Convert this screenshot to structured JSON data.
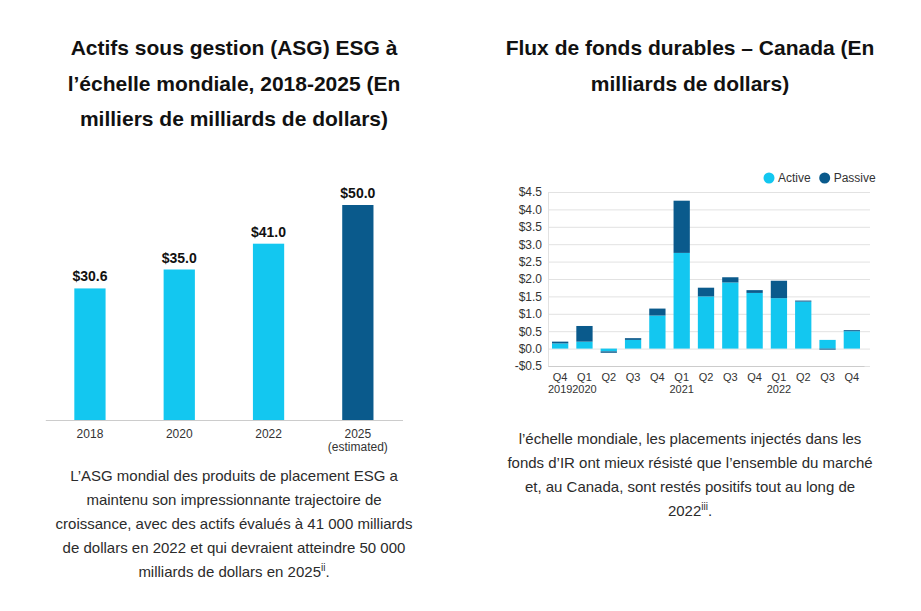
{
  "chart_data": [
    {
      "type": "bar",
      "title": [
        "Actifs sous gestion (ASG) ESG à",
        "l’échelle mondiale, 2018-2025 (En",
        "milliers de milliards de dollars)"
      ],
      "categories": [
        "2018",
        "2020",
        "2022",
        "2025\n(estimated)"
      ],
      "values": [
        30.6,
        35.0,
        41.0,
        50.0
      ],
      "value_labels": [
        "$30.6",
        "$35.0",
        "$41.0",
        "$50.0"
      ],
      "data_labels": true,
      "colors": [
        "#13c7f0",
        "#13c7f0",
        "#13c7f0",
        "#0a5a8c"
      ],
      "ylim": [
        0,
        50
      ],
      "tick_labels": "x",
      "grid": false,
      "caption": {
        "lines": [
          "L’ASG mondial des produits de placement ESG a",
          "maintenu son impressionnante trajectoire de",
          "croissance, avec des actifs évalués à 41 000 milliards",
          "de dollars en 2022 et qui devraient atteindre 50 000",
          "milliards de dollars en 2025"
        ],
        "footnote": "ii",
        "end": "."
      }
    },
    {
      "type": "bar",
      "stacked": true,
      "title": [
        "Flux de fonds durables – Canada (En",
        "milliards de dollars)"
      ],
      "categories": [
        "Q4\n2019",
        "Q1\n2020",
        "Q2",
        "Q3",
        "Q4",
        "Q1\n2021",
        "Q2",
        "Q3",
        "Q4",
        "Q1\n2022",
        "Q2",
        "Q3",
        "Q4"
      ],
      "series": [
        {
          "name": "Active",
          "color": "#13c7f0",
          "values": [
            0.15,
            0.2,
            -0.08,
            0.25,
            0.95,
            2.75,
            1.5,
            1.9,
            1.6,
            1.45,
            1.35,
            0.25,
            0.5
          ]
        },
        {
          "name": "Passive",
          "color": "#0a5a8c",
          "values": [
            0.05,
            0.45,
            -0.04,
            0.05,
            0.2,
            1.5,
            0.25,
            0.15,
            0.08,
            0.5,
            0.03,
            -0.03,
            0.03
          ]
        }
      ],
      "ylim": [
        -0.5,
        4.5
      ],
      "yticks": [
        {
          "value": -0.5,
          "label": "-$0.5"
        },
        {
          "value": 0,
          "label": "$0.0"
        },
        {
          "value": 0.5,
          "label": "$0.5"
        },
        {
          "value": 1,
          "label": "$1.0"
        },
        {
          "value": 1.5,
          "label": "$1.5"
        },
        {
          "value": 2,
          "label": "$2.0"
        },
        {
          "value": 2.5,
          "label": "$2.5"
        },
        {
          "value": 3,
          "label": "$3.0"
        },
        {
          "value": 3.5,
          "label": "$3.5"
        },
        {
          "value": 4,
          "label": "$4.0"
        },
        {
          "value": 4.5,
          "label": "$4.5"
        }
      ],
      "grid": true,
      "legend": "top-right",
      "caption": {
        "lines": [
          "l’échelle mondiale, les placements injectés dans les",
          "fonds d’IR ont mieux résisté que l’ensemble du marché",
          "et, au Canada, sont restés positifs tout au long de",
          "2022"
        ],
        "footnote": "iii",
        "end": "."
      }
    }
  ]
}
